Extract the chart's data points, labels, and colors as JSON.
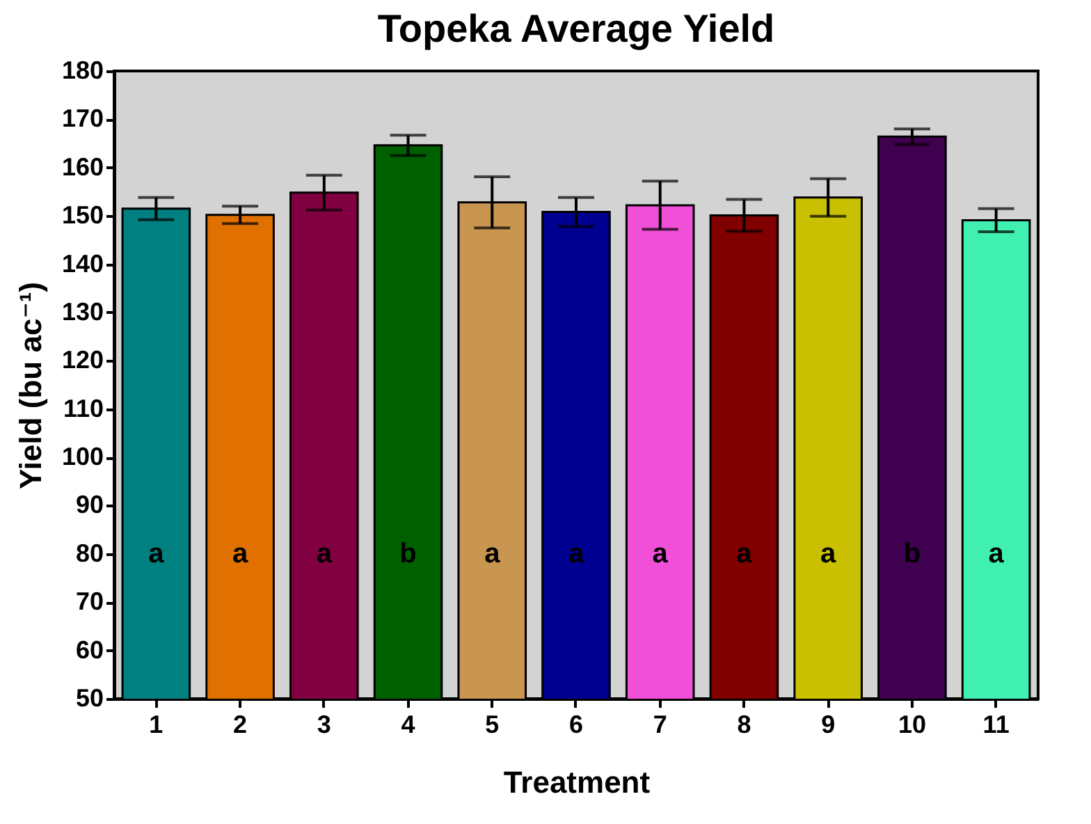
{
  "chart_data": {
    "type": "bar",
    "title": "Topeka Average Yield",
    "xlabel": "Treatment",
    "ylabel": "Yield (bu ac⁻¹)",
    "categories": [
      "1",
      "2",
      "3",
      "4",
      "5",
      "6",
      "7",
      "8",
      "9",
      "10",
      "11"
    ],
    "values": [
      151.5,
      150.2,
      154.8,
      164.6,
      152.8,
      150.8,
      152.2,
      150.1,
      153.8,
      166.4,
      149.1
    ],
    "errors": [
      2.3,
      1.8,
      3.6,
      2.1,
      5.3,
      3.0,
      5.0,
      3.3,
      3.9,
      1.6,
      2.4
    ],
    "colors": [
      "#008080",
      "#e07000",
      "#800040",
      "#006000",
      "#c89650",
      "#000090",
      "#f050d8",
      "#800000",
      "#c8c000",
      "#400050",
      "#40f0b0"
    ],
    "ylim": [
      50,
      180
    ],
    "yticks": [
      50,
      60,
      70,
      80,
      90,
      100,
      110,
      120,
      130,
      140,
      150,
      160,
      170,
      180
    ],
    "grid": false,
    "legend": false,
    "annotations": [
      "a",
      "a",
      "a",
      "b",
      "a",
      "a",
      "a",
      "a",
      "a",
      "b",
      "a"
    ]
  }
}
